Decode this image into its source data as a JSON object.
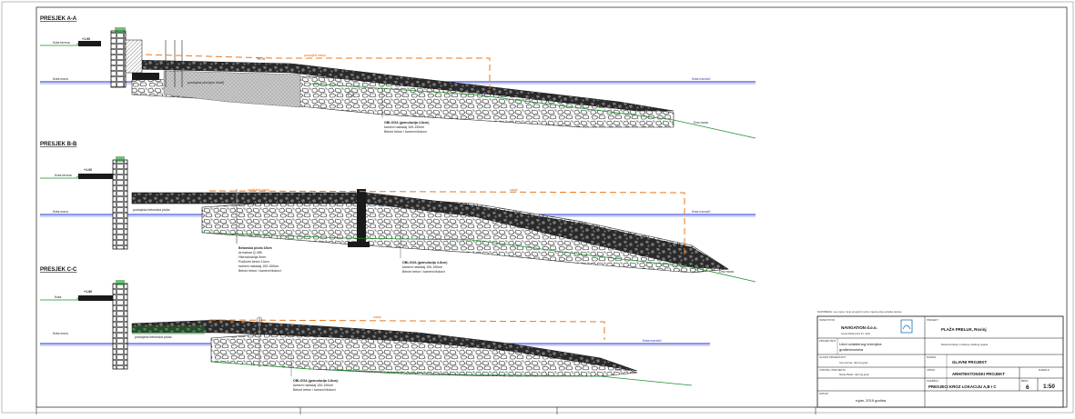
{
  "sections": [
    {
      "title": "PRESJEK A-A",
      "labels": {
        "left_top": "Kota terena",
        "left_water": "Kota mora",
        "elev_top": "+1.50",
        "elev_mid": "+0.70",
        "orange": "postojeći nasip",
        "water_right": "Kota mora±0",
        "seabed_right": "Dno mora",
        "water_mid": "postojeća ploča(ne dirati)"
      },
      "note": [
        "OBLOGA (granulacija 4-8cm)",
        "kameni nabačaj 100-150cm",
        "Betoni beton i kameni blokovi"
      ]
    },
    {
      "title": "PRESJEK B-B",
      "labels": {
        "left_top": "Kota terena",
        "left_water": "Kota mora",
        "elev_top": "+1.60",
        "orange": "postojeći nasip",
        "orange_right": "nasip",
        "water_right": "Kota mora±0",
        "seabed_right": "Dno mora",
        "plate": "postojeća betonska ploča"
      },
      "note_left": [
        "Betonska ploča 15cm",
        "Armatura Q-385",
        "Hidroizolacija 5mm",
        "Podložni beton 10cm",
        "kameni nabačaj 100-150cm",
        "Betoni beton i kameni blokovi"
      ],
      "note": [
        "OBLOGA (granulacija 4-8cm)",
        "kameni nabačaj 100-150cm",
        "Betoni beton i kameni blokovi"
      ]
    },
    {
      "title": "PRESJEK C-C",
      "labels": {
        "left_top": "Kota",
        "left_water": "Kota mora",
        "elev_top": "+1.80",
        "orange": "nasip",
        "water_right": "Kota mora±0",
        "seabed_right": "Dno mora",
        "plate": "postojeća betonska ploča"
      },
      "note": [
        "OBLOGA (granulacija 4-8cm)",
        "kameni nabačaj 100-150cm",
        "Betoni beton i kameni blokovi"
      ]
    }
  ],
  "title_block": {
    "header_note": "NAPOMENA: sve mjere i kote provjeriti na licu mjesta prije početka radova",
    "investor_label": "INVESTITOR",
    "investor_name": "NAVIGATION d.o.o.",
    "investor_addr": "Ivana Meštrovića 11, Split",
    "project_label": "PROJEKT",
    "project_title": "PLAŽA PRELUK, Rovinj",
    "project_desc": "Rekonstrukcija i uređenje obalnog pojasa",
    "designer_label": "PROJEKTANT",
    "designer_name": "Ured ovlaštenog inženjera",
    "designer_sub": "građevinarstva",
    "chief_label": "GLAVNI PROJEKTANT",
    "chief_name": "Ivan Horvat, dipl.ing.grad.",
    "level_label": "RAZINA",
    "level_value": "GLAVNI PROJEKT",
    "author_label": "VODITELJ PROJEKTA",
    "author_name": "Marko Babić, dipl.ing.grad.",
    "type_label": "VRSTA",
    "type_value": "ARHITEKTONSKI PROJEKT",
    "scale_label": "MJERILO",
    "scale_value": "1:50",
    "drawing_label": "SADRŽAJ",
    "drawing_value": "PRESJECI KROZ LOKACIJU A,B I C",
    "sheet_label": "BROJ",
    "sheet_value": "6",
    "date_label": "DATUM",
    "date_value": "rujan, 2019 godina"
  },
  "colors": {
    "water": "#1a2fd0",
    "orange": "#e8781e",
    "green": "#1f8f2a",
    "dark": "#1a1a1a"
  }
}
